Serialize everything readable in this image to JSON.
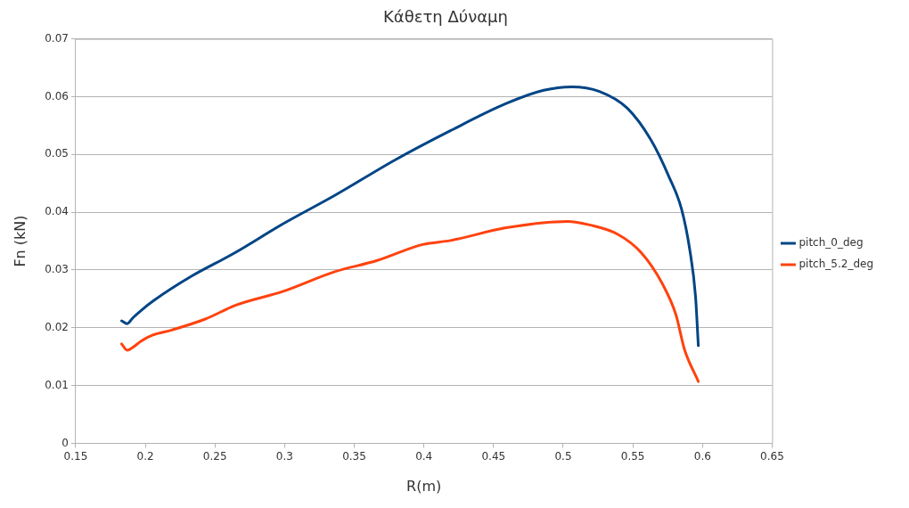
{
  "chart_data": {
    "type": "line",
    "title": "Κάθετη Δύναμη",
    "xlabel": "R(m)",
    "ylabel": "Fn (kN)",
    "xlim": [
      0.15,
      0.65
    ],
    "xticks": [
      0.15,
      0.2,
      0.25,
      0.3,
      0.35,
      0.4,
      0.45,
      0.5,
      0.55,
      0.6,
      0.65
    ],
    "ylim": [
      0,
      0.07
    ],
    "yticks": [
      0,
      0.01,
      0.02,
      0.03,
      0.04,
      0.05,
      0.06,
      0.07
    ],
    "grid": "y",
    "legend": "right",
    "marker": "none",
    "line_style": "solid",
    "series": [
      {
        "name": "pitch_0_deg",
        "color": "#004586",
        "x": [
          0.183,
          0.187,
          0.191,
          0.197,
          0.206,
          0.233,
          0.263,
          0.299,
          0.336,
          0.379,
          0.419,
          0.459,
          0.486,
          0.506,
          0.526,
          0.546,
          0.563,
          0.576,
          0.585,
          0.591,
          0.595,
          0.597
        ],
        "values": [
          0.0212,
          0.0207,
          0.0217,
          0.023,
          0.0247,
          0.0289,
          0.0328,
          0.038,
          0.0429,
          0.049,
          0.0541,
          0.0588,
          0.0611,
          0.0617,
          0.0609,
          0.058,
          0.0525,
          0.0461,
          0.0405,
          0.0333,
          0.0254,
          0.0169
        ]
      },
      {
        "name": "pitch_5.2_deg",
        "color": "#ff420e",
        "x": [
          0.183,
          0.187,
          0.191,
          0.197,
          0.205,
          0.219,
          0.243,
          0.265,
          0.299,
          0.336,
          0.366,
          0.399,
          0.419,
          0.459,
          0.503,
          0.519,
          0.539,
          0.556,
          0.571,
          0.581,
          0.587,
          0.597
        ],
        "values": [
          0.0172,
          0.0161,
          0.0166,
          0.0177,
          0.0187,
          0.0196,
          0.0215,
          0.0239,
          0.0263,
          0.0297,
          0.0316,
          0.0344,
          0.0351,
          0.0373,
          0.0384,
          0.0378,
          0.0362,
          0.033,
          0.0277,
          0.0222,
          0.0163,
          0.0107
        ]
      }
    ]
  }
}
